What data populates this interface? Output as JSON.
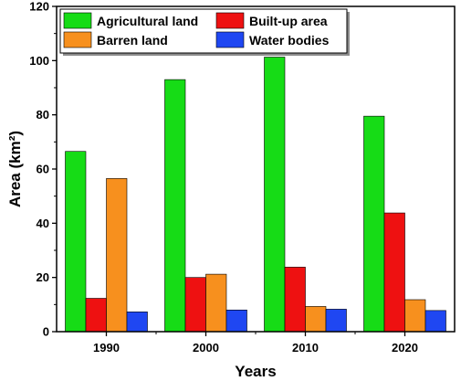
{
  "chart_data": {
    "type": "bar",
    "title": "",
    "xlabel": "Years",
    "ylabel": "Area (km²)",
    "categories": [
      "1990",
      "2000",
      "2010",
      "2020"
    ],
    "ylim": [
      0,
      120
    ],
    "yticks": [
      0,
      20,
      40,
      60,
      80,
      100,
      120
    ],
    "series": [
      {
        "name": "Agricultural land",
        "color": "#16dc16",
        "values": [
          66.5,
          93,
          101.3,
          79.5
        ]
      },
      {
        "name": "Built-up area",
        "color": "#ee1111",
        "values": [
          12.3,
          20,
          23.8,
          43.8
        ]
      },
      {
        "name": "Barren land",
        "color": "#f7901e",
        "values": [
          56.5,
          21.2,
          9.3,
          11.8
        ]
      },
      {
        "name": "Water bodies",
        "color": "#1f47f2",
        "values": [
          7.3,
          8,
          8.3,
          7.8
        ]
      }
    ],
    "legend_position": "top",
    "grid": false
  }
}
